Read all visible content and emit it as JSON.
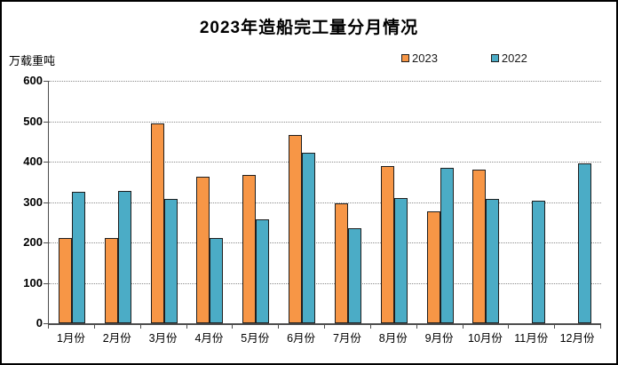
{
  "chart": {
    "title": "2023年造船完工量分月情况",
    "unit_label": "万载重吨"
  },
  "legend": {
    "items": [
      {
        "label": "2023",
        "color": "#F79646"
      },
      {
        "label": "2022",
        "color": "#4BACC6"
      }
    ]
  },
  "chart_data": {
    "type": "bar",
    "title": "2023年造船完工量分月情况",
    "xlabel": "",
    "ylabel": "万载重吨",
    "categories": [
      "1月份",
      "2月份",
      "3月份",
      "4月份",
      "5月份",
      "6月份",
      "7月份",
      "8月份",
      "9月份",
      "10月份",
      "11月份",
      "12月份"
    ],
    "series": [
      {
        "name": "2023",
        "color": "#F79646",
        "values": [
          211,
          211,
          495,
          363,
          367,
          465,
          296,
          388,
          276,
          381,
          null,
          null
        ]
      },
      {
        "name": "2022",
        "color": "#4BACC6",
        "values": [
          326,
          328,
          308,
          210,
          257,
          422,
          235,
          310,
          385,
          308,
          303,
          396
        ]
      }
    ],
    "ylim": [
      0,
      600
    ],
    "ytick_step": 100,
    "grid": true,
    "legend_position": "top-right"
  },
  "colors": {
    "bar_border": "#1F1F1F",
    "gridline": "#8C8C8C",
    "axis": "#4D4D4D",
    "background": "#FFFFFF",
    "frame_border": "#000000"
  }
}
